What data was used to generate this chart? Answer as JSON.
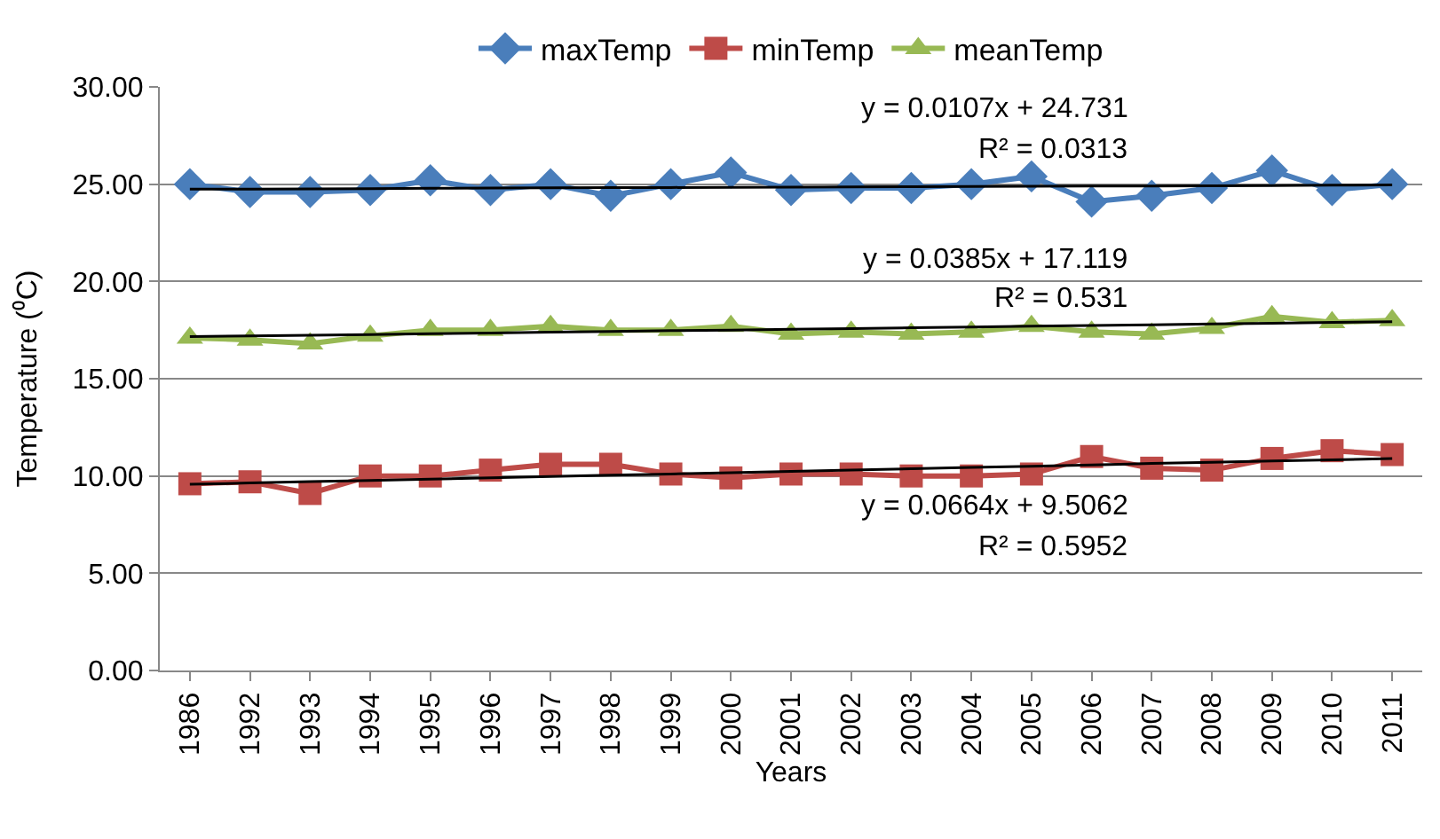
{
  "chart_data": {
    "type": "line",
    "xlabel": "Years",
    "ylabel": "Temperature (⁰C)",
    "categories": [
      "1986",
      "1992",
      "1993",
      "1994",
      "1995",
      "1996",
      "1997",
      "1998",
      "1999",
      "2000",
      "2001",
      "2002",
      "2003",
      "2004",
      "2005",
      "2006",
      "2007",
      "2008",
      "2009",
      "2010",
      "2011"
    ],
    "series": [
      {
        "name": "maxTemp",
        "color": "#4a7ebb",
        "marker": "diamond",
        "values": [
          25.0,
          24.6,
          24.6,
          24.7,
          25.2,
          24.7,
          25.0,
          24.4,
          25.0,
          25.6,
          24.7,
          24.8,
          24.8,
          25.0,
          25.4,
          24.1,
          24.4,
          24.8,
          25.7,
          24.7,
          25.0
        ]
      },
      {
        "name": "minTemp",
        "color": "#be4b48",
        "marker": "square",
        "values": [
          9.6,
          9.7,
          9.1,
          10.0,
          10.0,
          10.3,
          10.6,
          10.6,
          10.1,
          9.9,
          10.1,
          10.1,
          10.0,
          10.0,
          10.1,
          11.0,
          10.4,
          10.3,
          10.9,
          11.3,
          11.1
        ]
      },
      {
        "name": "meanTemp",
        "color": "#98b954",
        "marker": "triangle",
        "values": [
          17.1,
          17.0,
          16.8,
          17.2,
          17.5,
          17.5,
          17.7,
          17.5,
          17.5,
          17.7,
          17.3,
          17.4,
          17.3,
          17.4,
          17.7,
          17.4,
          17.3,
          17.6,
          18.2,
          17.9,
          18.0
        ]
      },
      {
        "color": "#000000",
        "marker": "none",
        "values": [
          24.74,
          24.75,
          24.76,
          24.77,
          24.79,
          24.8,
          24.81,
          24.82,
          24.83,
          24.84,
          24.85,
          24.86,
          24.87,
          24.88,
          24.89,
          24.9,
          24.91,
          24.92,
          24.93,
          24.95,
          24.96
        ]
      },
      {
        "color": "#000000",
        "marker": "none",
        "values": [
          17.16,
          17.2,
          17.23,
          17.27,
          17.31,
          17.35,
          17.39,
          17.43,
          17.47,
          17.5,
          17.54,
          17.58,
          17.62,
          17.66,
          17.7,
          17.74,
          17.77,
          17.81,
          17.85,
          17.89,
          17.93
        ]
      },
      {
        "color": "#000000",
        "marker": "none",
        "values": [
          9.57,
          9.64,
          9.71,
          9.77,
          9.84,
          9.9,
          9.97,
          10.04,
          10.1,
          10.17,
          10.24,
          10.3,
          10.37,
          10.44,
          10.5,
          10.57,
          10.64,
          10.7,
          10.77,
          10.83,
          10.9
        ]
      }
    ],
    "ylim": [
      0,
      30
    ],
    "yticks": [
      {
        "value": 0,
        "label": "0.00"
      },
      {
        "value": 5,
        "label": "5.00"
      },
      {
        "value": 10,
        "label": "10.00"
      },
      {
        "value": 15,
        "label": "15.00"
      },
      {
        "value": 20,
        "label": "20.00"
      },
      {
        "value": 25,
        "label": "25.00"
      },
      {
        "value": 30,
        "label": "30.00"
      }
    ],
    "grid": "y",
    "legend": "top",
    "annotations": [
      "y = 0.0107x + 24.731",
      "R² = 0.0313",
      "y = 0.0385x + 17.119",
      "R² = 0.531",
      "y = 0.0664x + 9.5062",
      "R² = 0.5952"
    ]
  }
}
